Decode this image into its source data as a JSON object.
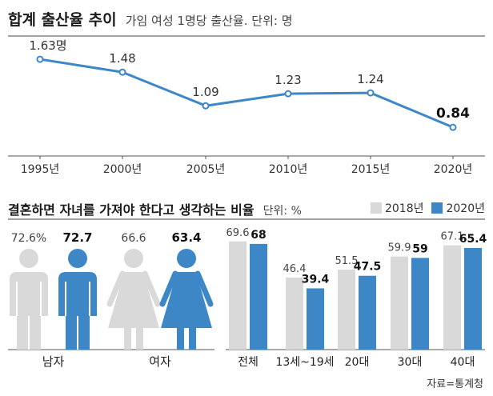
{
  "header": {
    "title": "합계 출산율 추이",
    "subtitle": "가임 여성 1명당 출산율. 단위: 명"
  },
  "section2": {
    "title": "결혼하면 자녀를 가져야 한다고 생각하는 비율",
    "unit": "단위: %"
  },
  "legend": [
    {
      "label": "2018년",
      "color": "#d9d9d9"
    },
    {
      "label": "2020년",
      "color": "#3e87c7"
    }
  ],
  "source": "자료=통계청",
  "chart_data": [
    {
      "type": "line",
      "title": "합계 출산율 추이",
      "subtitle": "가임 여성 1명당 출산율. 단위: 명",
      "x": [
        "1995년",
        "2000년",
        "2005년",
        "2010년",
        "2015년",
        "2020년"
      ],
      "values": [
        1.63,
        1.48,
        1.09,
        1.23,
        1.24,
        0.84
      ],
      "labels": [
        "1.63명",
        "1.48",
        "1.09",
        "1.23",
        "1.24",
        "0.84"
      ],
      "ylim": [
        0.6,
        1.9
      ],
      "color": "#3e87c7"
    },
    {
      "type": "pictogram",
      "title": "결혼하면 자녀를 가져야 한다고 생각하는 비율",
      "categories": [
        "남자",
        "여자"
      ],
      "series": [
        {
          "name": "2018년",
          "values": [
            72.6,
            66.6
          ],
          "labels": [
            "72.6%",
            "66.6"
          ]
        },
        {
          "name": "2020년",
          "values": [
            72.7,
            63.4
          ],
          "labels": [
            "72.7",
            "63.4"
          ]
        }
      ]
    },
    {
      "type": "bar",
      "categories": [
        "전체",
        "13세~19세",
        "20대",
        "30대",
        "40대"
      ],
      "series": [
        {
          "name": "2018년",
          "values": [
            69.6,
            46.4,
            51.5,
            59.9,
            67.1
          ]
        },
        {
          "name": "2020년",
          "values": [
            68,
            39.4,
            47.5,
            59,
            65.4
          ]
        }
      ],
      "ylim": [
        0,
        70
      ]
    }
  ]
}
